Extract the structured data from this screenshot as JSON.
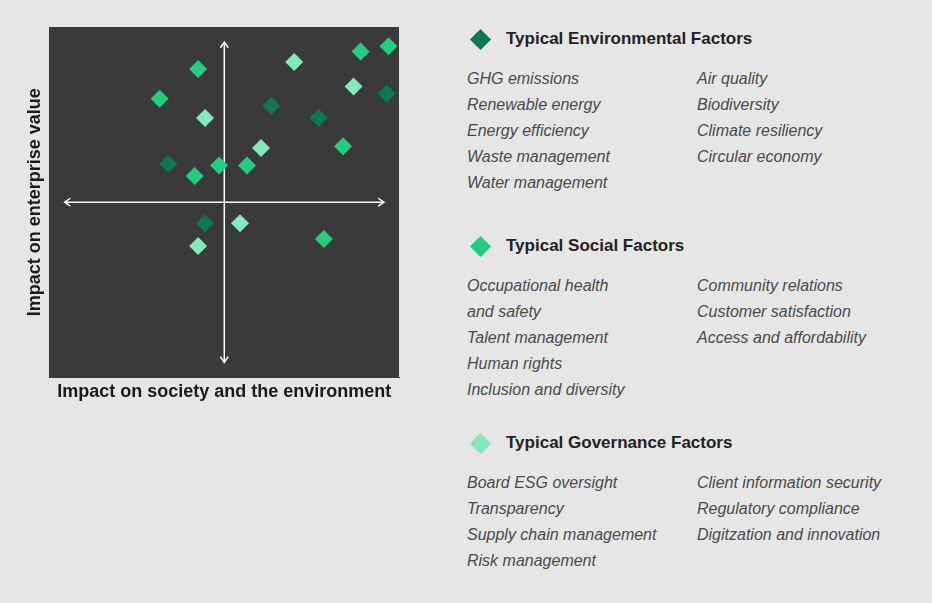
{
  "chart_data": {
    "type": "scatter",
    "x_label": "Impact on society and the environment",
    "y_label": "Impact on enterprise value",
    "xlim": [
      -10,
      10
    ],
    "ylim": [
      -10,
      10
    ],
    "tick_labels": false,
    "grid": false,
    "legend": "right",
    "series": [
      {
        "name": "Typical Environmental Factors",
        "color": "#0b7a50",
        "marker": "diamond",
        "x": [
          2.7,
          9.3,
          5.4,
          -3.2,
          -1.1
        ],
        "y": [
          5.5,
          6.2,
          4.8,
          2.2,
          -1.2
        ],
        "factors": [
          [
            "GHG emissions",
            "Renewable energy",
            "Energy efficiency",
            "Waste management",
            "Water management"
          ],
          [
            "Air quality",
            "Biodiversity",
            "Climate resiliency",
            "Circular economy"
          ]
        ]
      },
      {
        "name": "Typical Social Factors",
        "color": "#1fcf7f",
        "marker": "diamond",
        "x": [
          -3.7,
          -1.5,
          7.8,
          9.4,
          6.8,
          -1.7,
          -0.3,
          1.3,
          5.7
        ],
        "y": [
          5.9,
          7.6,
          8.6,
          8.9,
          3.2,
          1.5,
          2.1,
          2.1,
          -2.1
        ],
        "factors": [
          [
            "Occupational health and safety",
            "Talent management",
            "Human rights",
            "Inclusion and diversity"
          ],
          [
            "Community relations",
            "Customer satisfaction",
            "Access and affordability"
          ]
        ]
      },
      {
        "name": "Typical Governance Factors",
        "color": "#80eab8",
        "marker": "diamond",
        "x": [
          -1.1,
          4.0,
          7.4,
          2.1,
          0.9,
          -1.5
        ],
        "y": [
          4.8,
          8.0,
          6.6,
          3.1,
          -1.2,
          -2.5
        ],
        "factors": [
          [
            "Board ESG oversight",
            "Transparency",
            "Supply chain management",
            "Risk management"
          ],
          [
            "Client information security",
            "Regulatory compliance",
            "Digitzation and innovation"
          ]
        ]
      }
    ]
  }
}
